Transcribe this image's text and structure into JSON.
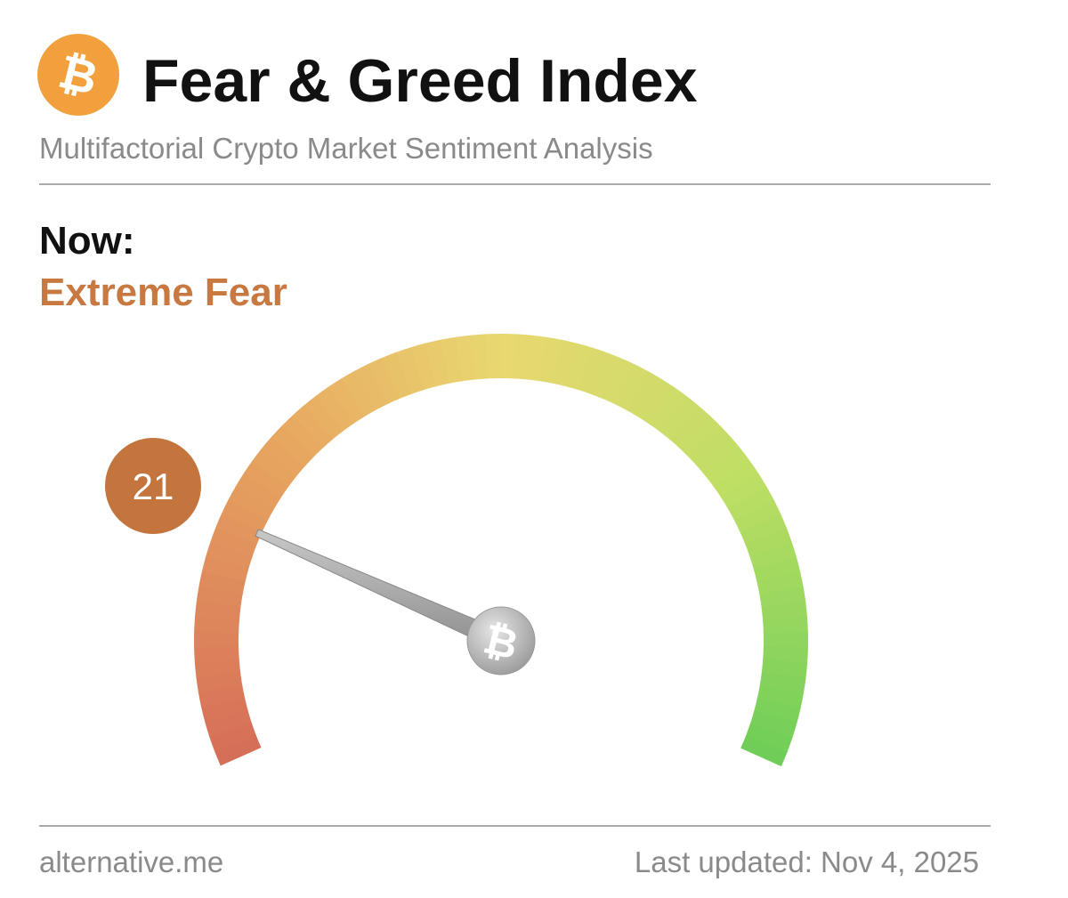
{
  "header": {
    "title": "Fear & Greed Index",
    "subtitle": "Multifactorial Crypto Market Sentiment Analysis"
  },
  "now": {
    "label": "Now:",
    "classification": "Extreme Fear"
  },
  "gauge": {
    "value": 21,
    "min": 0,
    "max": 100
  },
  "footer": {
    "source": "alternative.me",
    "updated": "Last updated: Nov 4, 2025"
  }
}
